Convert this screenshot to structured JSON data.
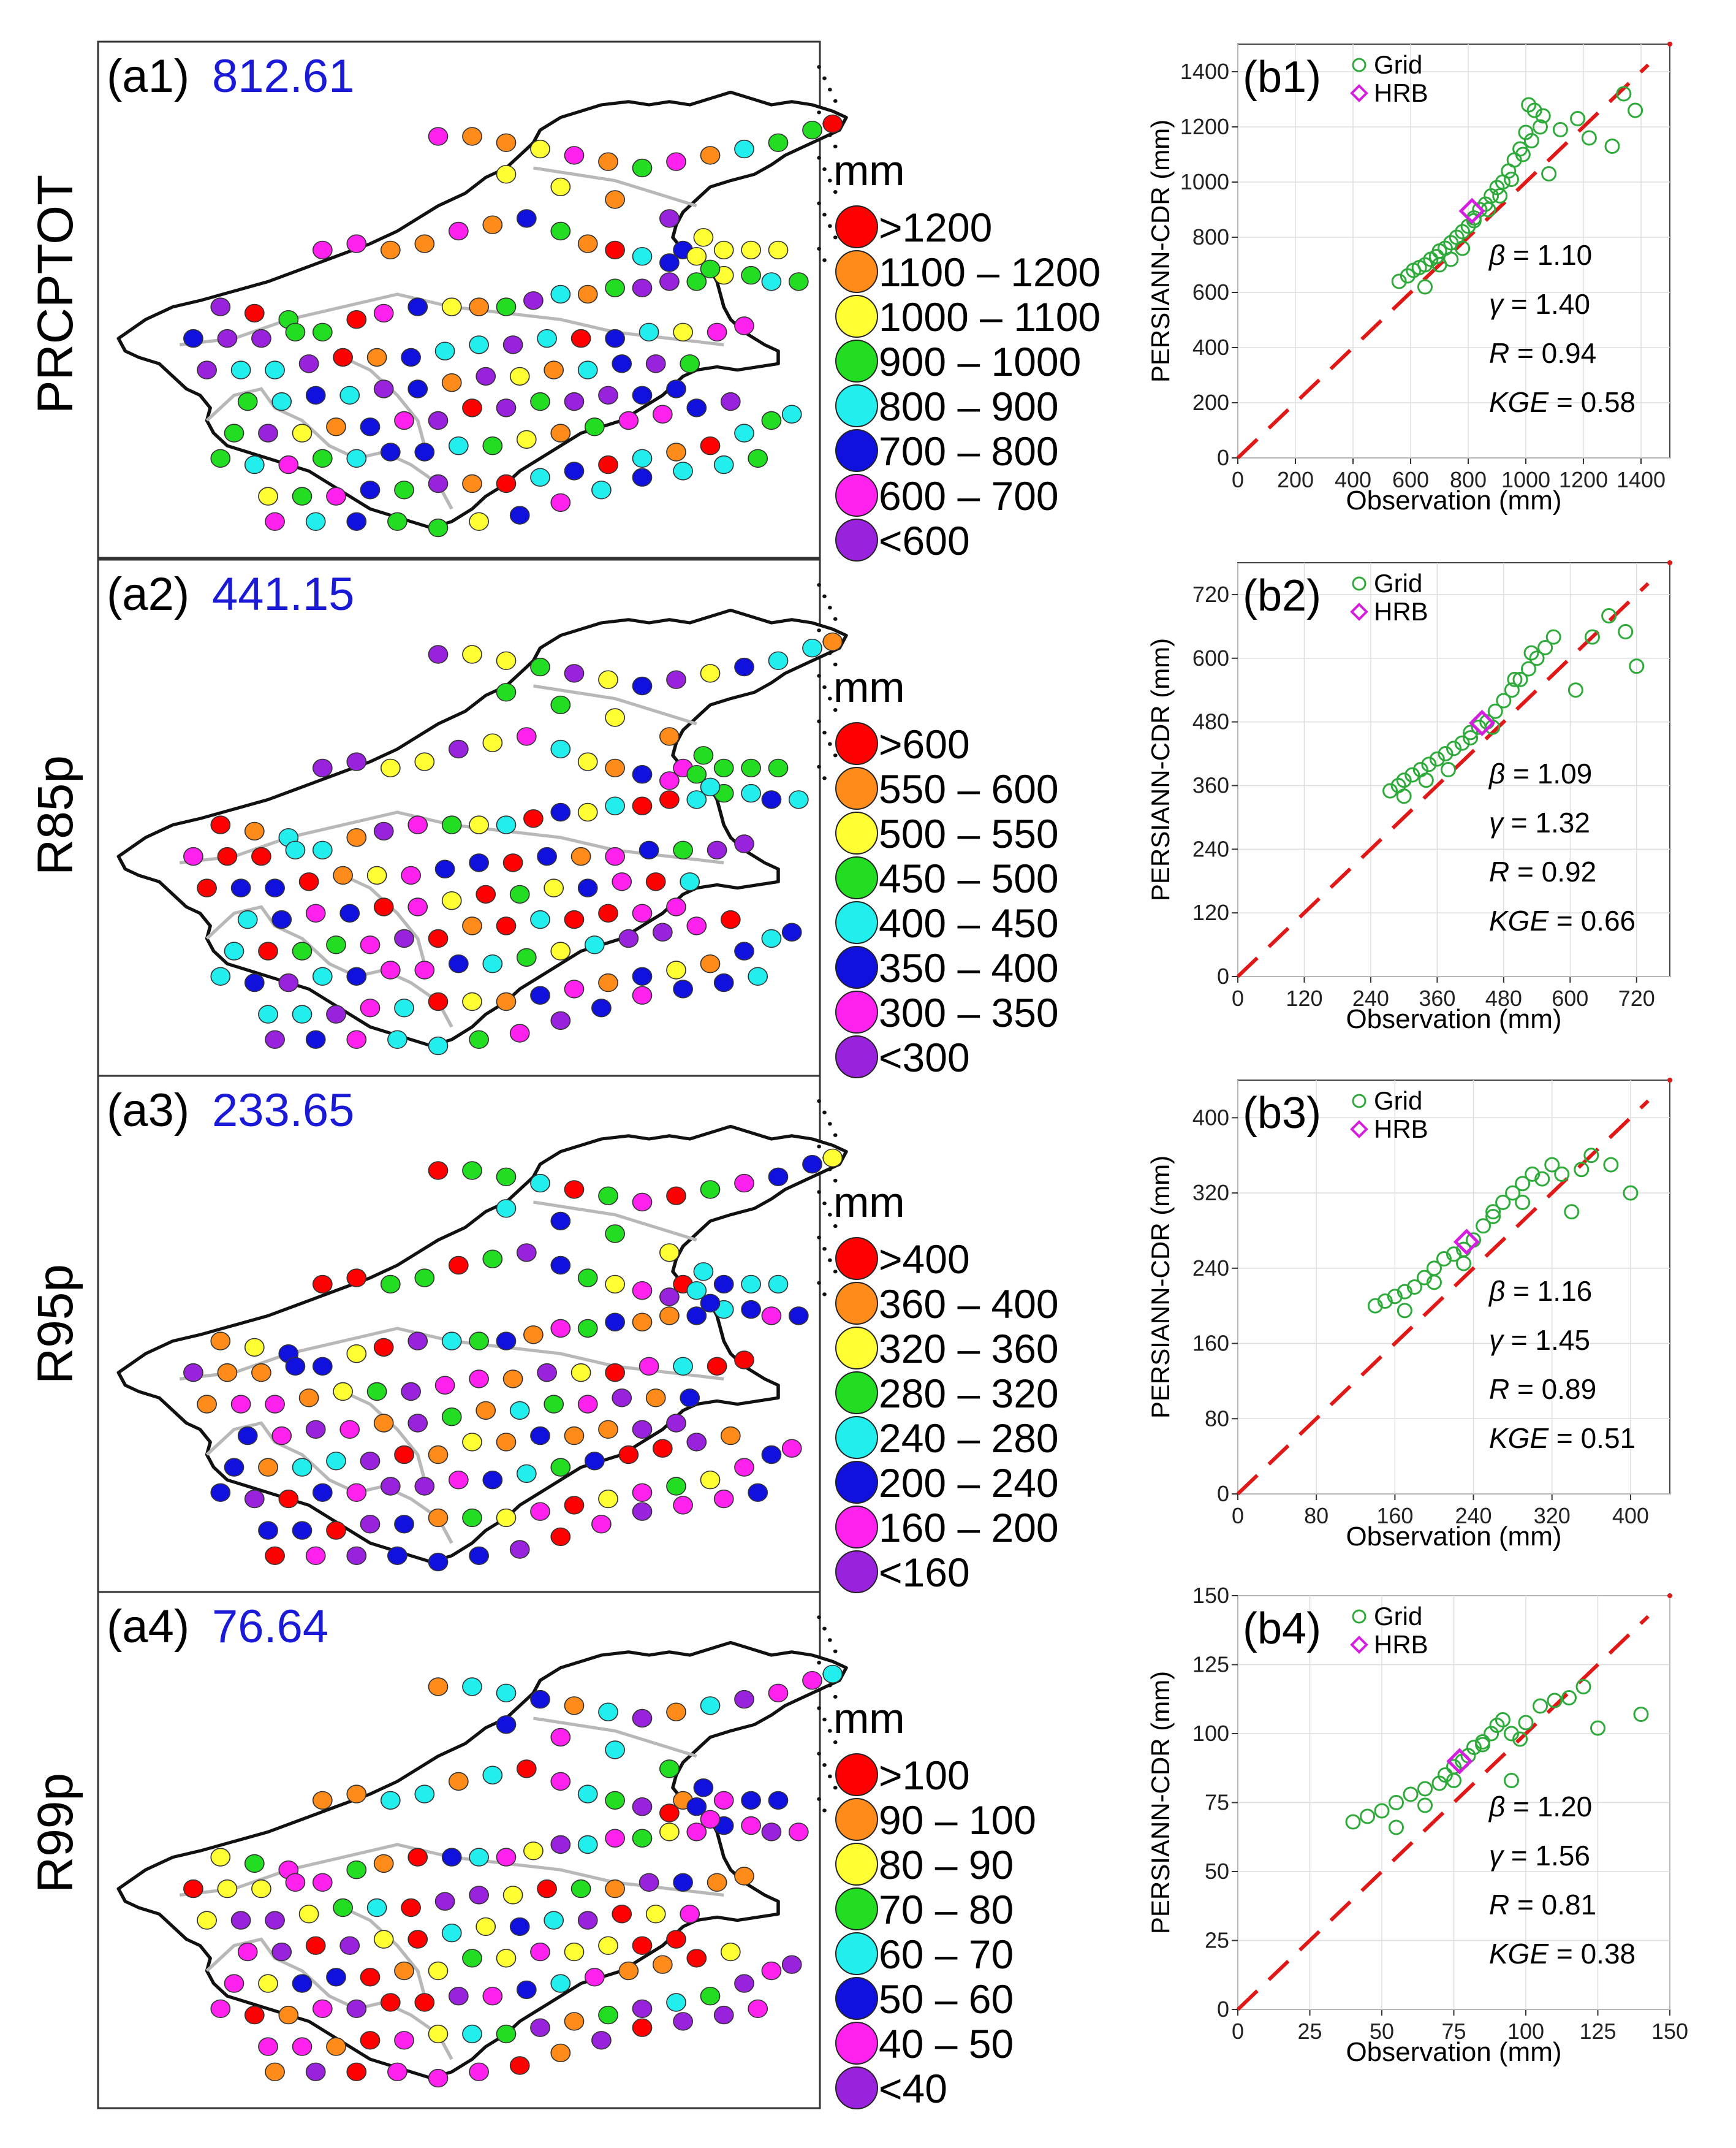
{
  "panels": [
    {
      "row_label": "PRCPTOT",
      "map_label": "(a1)",
      "map_mean": "812.61",
      "legend_unit": "mm",
      "legend": [
        ">1200",
        "1100 – 1200",
        "1000 – 1100",
        "900 – 1000",
        "800 – 900",
        "700 – 800",
        "600 – 700",
        "<600"
      ],
      "scatter_label": "(b1)",
      "stats": [
        {
          "sym": "β",
          "val": " = 1.10"
        },
        {
          "sym": "γ",
          "val": " = 1.40"
        },
        {
          "sym": "R",
          "val": " = 0.94"
        },
        {
          "sym": "KGE",
          "val": " = 0.58"
        }
      ]
    },
    {
      "row_label": "R85p",
      "map_label": "(a2)",
      "map_mean": "441.15",
      "legend_unit": "mm",
      "legend": [
        ">600",
        "550 – 600",
        "500 – 550",
        "450 – 500",
        "400 – 450",
        "350 – 400",
        "300 – 350",
        "<300"
      ],
      "scatter_label": "(b2)",
      "stats": [
        {
          "sym": "β",
          "val": " = 1.09"
        },
        {
          "sym": "γ",
          "val": " = 1.32"
        },
        {
          "sym": "R",
          "val": " = 0.92"
        },
        {
          "sym": "KGE",
          "val": " = 0.66"
        }
      ]
    },
    {
      "row_label": "R95p",
      "map_label": "(a3)",
      "map_mean": "233.65",
      "legend_unit": "mm",
      "legend": [
        ">400",
        "360 – 400",
        "320 – 360",
        "280 – 320",
        "240 – 280",
        "200 – 240",
        "160 – 200",
        "<160"
      ],
      "scatter_label": "(b3)",
      "stats": [
        {
          "sym": "β",
          "val": " = 1.16"
        },
        {
          "sym": "γ",
          "val": " = 1.45"
        },
        {
          "sym": "R",
          "val": " = 0.89"
        },
        {
          "sym": "KGE",
          "val": " = 0.51"
        }
      ]
    },
    {
      "row_label": "R99p",
      "map_label": "(a4)",
      "map_mean": "76.64",
      "legend_unit": "mm",
      "legend": [
        ">100",
        "90 – 100",
        "80 – 90",
        "70 – 80",
        "60 – 70",
        "50 – 60",
        "40 – 50",
        "<40"
      ],
      "scatter_label": "(b4)",
      "stats": [
        {
          "sym": "β",
          "val": " = 1.20"
        },
        {
          "sym": "γ",
          "val": " = 1.56"
        },
        {
          "sym": "R",
          "val": " = 0.81"
        },
        {
          "sym": "KGE",
          "val": " = 0.38"
        }
      ]
    }
  ],
  "legend_colors": [
    "#ff0000",
    "#ff8c1a",
    "#ffff33",
    "#22dd22",
    "#22eeee",
    "#1111dd",
    "#ff22ee",
    "#9922dd"
  ],
  "chart_data": [
    {
      "type": "scatter",
      "title": "(b1) PRCPTOT",
      "xlabel": "Observation (mm)",
      "ylabel": "PERSIANN-CDR (mm)",
      "xlim": [
        0,
        1500
      ],
      "ylim": [
        0,
        1500
      ],
      "xticks": [
        0,
        200,
        400,
        600,
        800,
        1000,
        1200,
        1400
      ],
      "yticks": [
        0,
        200,
        400,
        600,
        800,
        1000,
        1200,
        1400
      ],
      "legend": [
        "Grid",
        "HRB"
      ],
      "series": [
        {
          "name": "Grid",
          "x": [
            560,
            590,
            610,
            630,
            650,
            670,
            690,
            700,
            720,
            740,
            760,
            780,
            800,
            820,
            840,
            860,
            880,
            900,
            920,
            940,
            960,
            980,
            1000,
            1010,
            1030,
            1050,
            1080,
            1120,
            1180,
            1220,
            1300,
            1340,
            1380,
            650,
            700,
            740,
            780,
            820,
            870,
            910,
            950,
            990,
            1020,
            1060
          ],
          "y": [
            640,
            660,
            680,
            690,
            700,
            720,
            730,
            750,
            760,
            780,
            800,
            820,
            840,
            870,
            900,
            920,
            950,
            980,
            1000,
            1040,
            1080,
            1120,
            1180,
            1280,
            1260,
            1200,
            1030,
            1190,
            1230,
            1160,
            1130,
            1320,
            1260,
            620,
            700,
            720,
            760,
            860,
            900,
            950,
            1010,
            1100,
            1150,
            1240
          ]
        },
        {
          "name": "HRB",
          "x": [
            813
          ],
          "y": [
            895
          ]
        }
      ],
      "reference_line": "1:1"
    },
    {
      "type": "scatter",
      "title": "(b2) R85p",
      "xlabel": "Observation (mm)",
      "ylabel": "PERSIANN-CDR (mm)",
      "xlim": [
        0,
        780
      ],
      "ylim": [
        0,
        780
      ],
      "xticks": [
        0,
        120,
        240,
        360,
        480,
        600,
        720
      ],
      "yticks": [
        0,
        120,
        240,
        360,
        480,
        600,
        720
      ],
      "legend": [
        "Grid",
        "HRB"
      ],
      "series": [
        {
          "name": "Grid",
          "x": [
            275,
            290,
            300,
            315,
            330,
            345,
            360,
            375,
            390,
            405,
            420,
            435,
            450,
            465,
            480,
            495,
            510,
            525,
            540,
            555,
            570,
            610,
            640,
            670,
            700,
            720,
            300,
            340,
            380,
            420,
            460,
            500,
            530
          ],
          "y": [
            350,
            360,
            370,
            380,
            390,
            400,
            410,
            420,
            430,
            440,
            460,
            470,
            480,
            500,
            520,
            540,
            560,
            580,
            600,
            620,
            640,
            540,
            640,
            680,
            650,
            585,
            340,
            370,
            390,
            450,
            470,
            560,
            610
          ]
        },
        {
          "name": "HRB",
          "x": [
            441
          ],
          "y": [
            478
          ]
        }
      ],
      "reference_line": "1:1"
    },
    {
      "type": "scatter",
      "title": "(b3) R95p",
      "xlabel": "Observation (mm)",
      "ylabel": "PERSIANN-CDR (mm)",
      "xlim": [
        0,
        440
      ],
      "ylim": [
        0,
        440
      ],
      "xticks": [
        0,
        80,
        160,
        240,
        320,
        400
      ],
      "yticks": [
        0,
        80,
        160,
        240,
        320,
        400
      ],
      "legend": [
        "Grid",
        "HRB"
      ],
      "series": [
        {
          "name": "Grid",
          "x": [
            140,
            150,
            160,
            170,
            180,
            190,
            200,
            210,
            220,
            230,
            240,
            250,
            260,
            270,
            280,
            290,
            300,
            310,
            320,
            330,
            340,
            350,
            360,
            380,
            400,
            170,
            200,
            230,
            260,
            290
          ],
          "y": [
            200,
            205,
            210,
            215,
            220,
            230,
            240,
            250,
            255,
            260,
            270,
            285,
            300,
            310,
            320,
            330,
            340,
            335,
            350,
            340,
            300,
            345,
            360,
            350,
            320,
            195,
            225,
            245,
            295,
            310
          ]
        },
        {
          "name": "HRB",
          "x": [
            233
          ],
          "y": [
            268
          ]
        }
      ],
      "reference_line": "1:1"
    },
    {
      "type": "scatter",
      "title": "(b4) R99p",
      "xlabel": "Observation (mm)",
      "ylabel": "PERSIANN-CDR (mm)",
      "xlim": [
        0,
        150
      ],
      "ylim": [
        0,
        150
      ],
      "xticks": [
        0,
        25,
        50,
        75,
        100,
        125,
        150
      ],
      "yticks": [
        0,
        25,
        50,
        75,
        100,
        125,
        150
      ],
      "legend": [
        "Grid",
        "HRB"
      ],
      "series": [
        {
          "name": "Grid",
          "x": [
            40,
            45,
            50,
            55,
            60,
            65,
            70,
            72,
            75,
            78,
            80,
            82,
            85,
            88,
            90,
            92,
            95,
            98,
            100,
            105,
            110,
            115,
            120,
            125,
            140,
            55,
            65,
            75,
            85,
            95
          ],
          "y": [
            68,
            70,
            72,
            75,
            78,
            80,
            82,
            85,
            88,
            90,
            92,
            95,
            97,
            100,
            103,
            105,
            100,
            98,
            104,
            110,
            112,
            113,
            117,
            102,
            107,
            66,
            74,
            83,
            96,
            83
          ]
        },
        {
          "name": "HRB",
          "x": [
            77
          ],
          "y": [
            90
          ]
        }
      ],
      "reference_line": "1:1"
    }
  ]
}
